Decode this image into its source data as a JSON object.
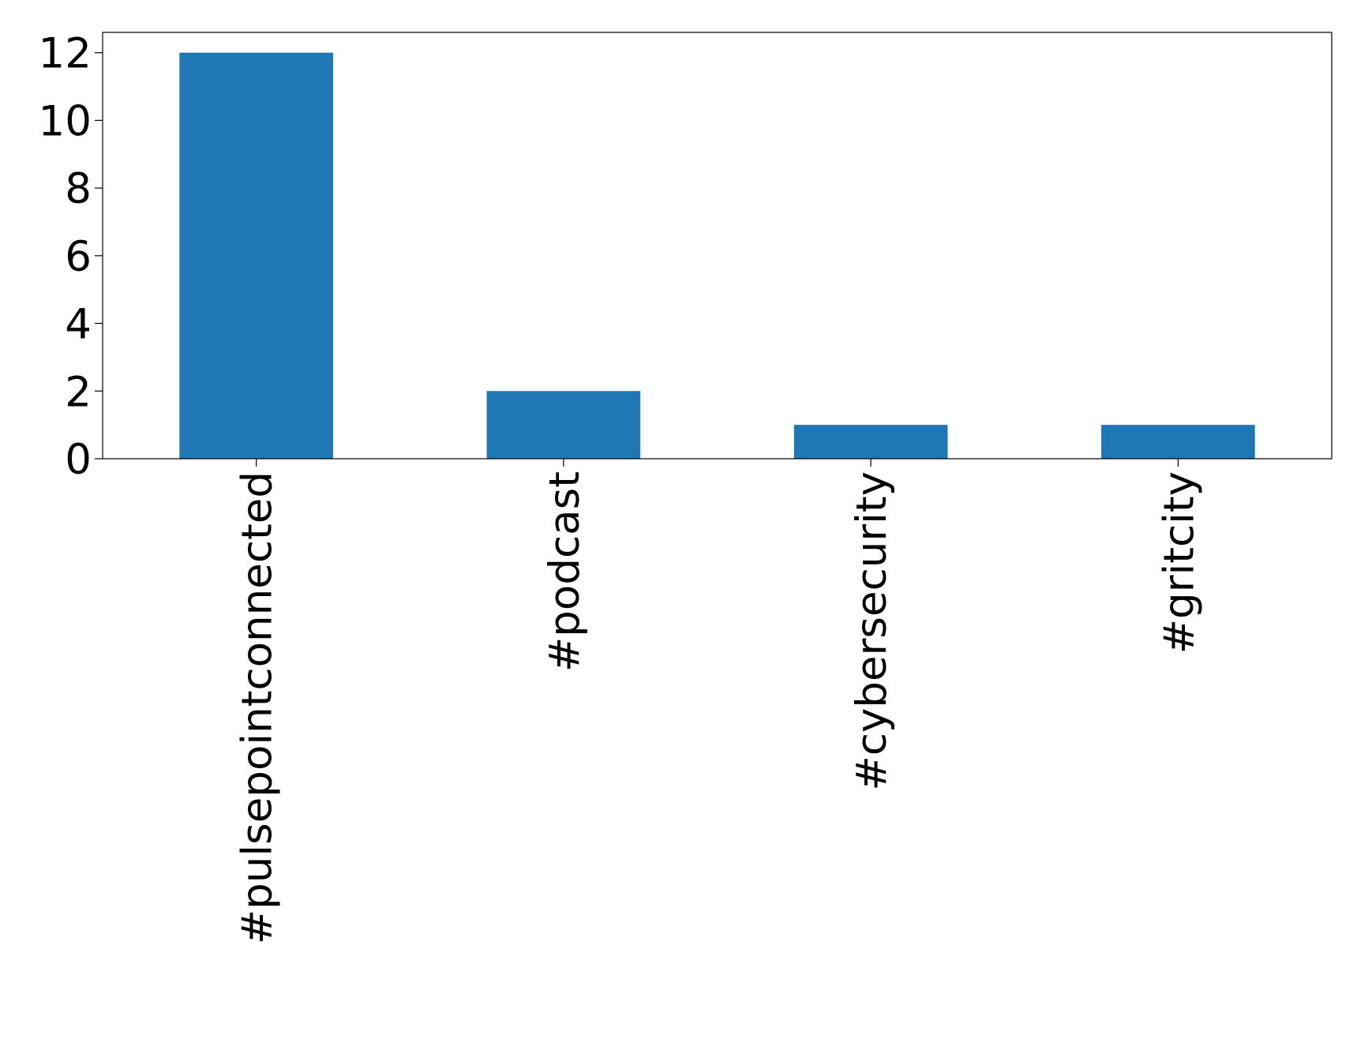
{
  "chart_data": {
    "type": "bar",
    "categories": [
      "#pulsepointconnected",
      "#podcast",
      "#cybersecurity",
      "#gritcity"
    ],
    "values": [
      12,
      2,
      1,
      1
    ],
    "color": "#1f77b4",
    "ylim": [
      0,
      12.6
    ],
    "yticks": [
      0,
      2,
      4,
      6,
      8,
      10,
      12
    ],
    "grid": false
  }
}
